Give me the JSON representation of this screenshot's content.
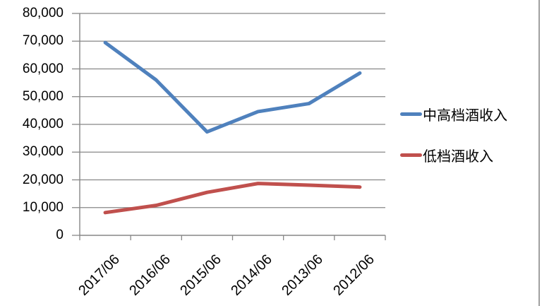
{
  "chart_data": {
    "type": "line",
    "title": "",
    "xlabel": "",
    "ylabel": "",
    "categories": [
      "2017/06",
      "2016/06",
      "2015/06",
      "2014/06",
      "2013/06",
      "2012/06"
    ],
    "series": [
      {
        "name": "中高档酒收入",
        "color": "#4F81BD",
        "values": [
          69500,
          56000,
          37300,
          44600,
          47500,
          58500
        ]
      },
      {
        "name": "低档酒收入",
        "color": "#C0504D",
        "values": [
          8200,
          10800,
          15500,
          18700,
          18100,
          17400
        ]
      }
    ],
    "ylim": [
      0,
      80000
    ],
    "y_tick_step": 10000,
    "y_tick_labels": [
      "0",
      "10,000",
      "20,000",
      "30,000",
      "40,000",
      "50,000",
      "60,000",
      "70,000",
      "80,000"
    ],
    "grid": true,
    "legend_position": "right"
  },
  "colors": {
    "background": "#FFFFFF",
    "gridline": "#878787",
    "axis": "#878787",
    "label_text": "#000000",
    "right_border": "#A0A0A0"
  }
}
